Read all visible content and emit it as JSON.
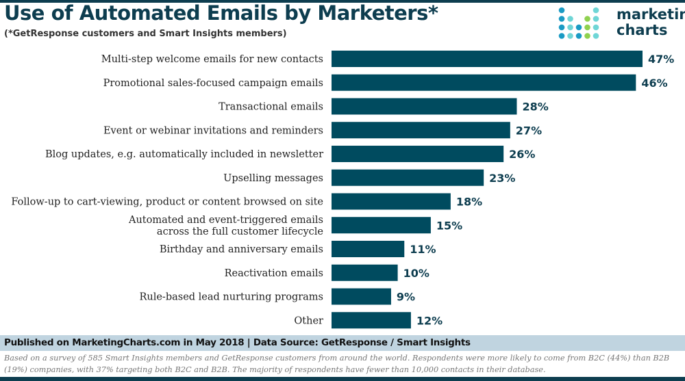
{
  "chart_data": {
    "type": "bar",
    "orientation": "horizontal",
    "title": "Use of Automated Emails by Marketers*",
    "subtitle": "(*GetResponse customers and Smart Insights members)",
    "categories": [
      [
        "Multi-step welcome emails for new contacts"
      ],
      [
        "Promotional sales-focused campaign emails"
      ],
      [
        "Transactional emails"
      ],
      [
        "Event or webinar invitations and reminders"
      ],
      [
        "Blog updates, e.g. automatically included in newsletter"
      ],
      [
        "Upselling messages"
      ],
      [
        "Follow-up to cart-viewing, product or content browsed on site"
      ],
      [
        "Automated and event-triggered emails",
        "across the full customer lifecycle"
      ],
      [
        "Birthday and anniversary emails"
      ],
      [
        "Reactivation emails"
      ],
      [
        "Rule-based lead nurturing programs"
      ],
      [
        "Other"
      ]
    ],
    "values": [
      47,
      46,
      28,
      27,
      26,
      23,
      18,
      15,
      11,
      10,
      9,
      12
    ],
    "value_labels": [
      "47%",
      "46%",
      "28%",
      "27%",
      "26%",
      "23%",
      "18%",
      "15%",
      "11%",
      "10%",
      "9%",
      "12%"
    ],
    "xlim": [
      0,
      50
    ],
    "grid": false,
    "bar_color": "#004b5f"
  },
  "logo": {
    "line1": "marketing",
    "line2": "charts"
  },
  "footer": {
    "source": "Published on MarketingCharts.com in May 2018 | Data Source: GetResponse / Smart Insights",
    "note": "Based on a survey of 585 Smart Insights members and GetResponse customers from around the world. Respondents were more likely to come from B2C (44%) than B2B (19%) companies, with 37% targeting both B2C and B2B. The majority of respondents have fewer than 10,000 contacts in their database."
  }
}
